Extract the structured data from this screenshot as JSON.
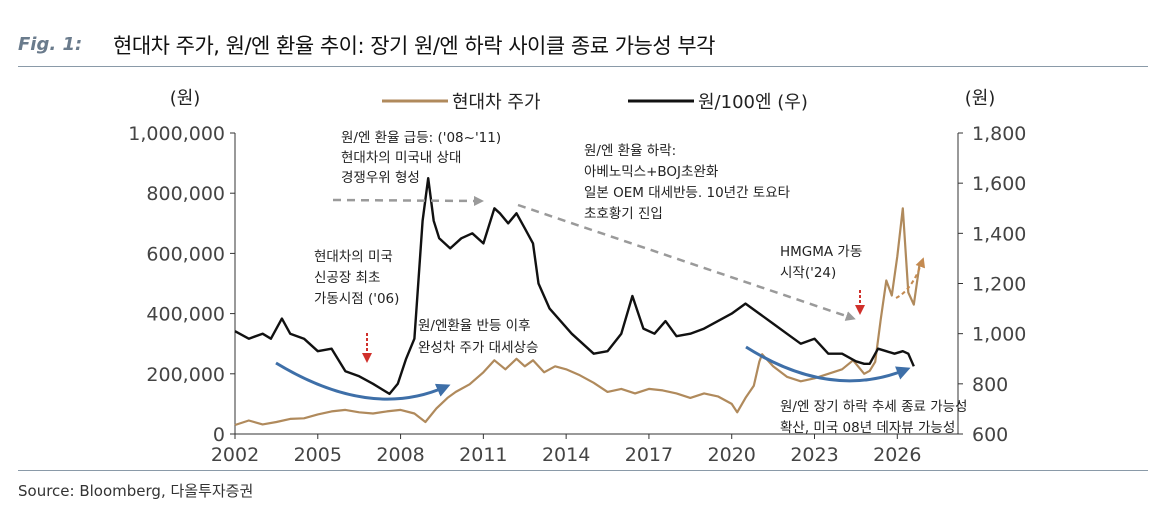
{
  "figure": {
    "label": "Fig. 1:",
    "title": "현대차 주가, 원/엔 환율 추이: 장기 원/엔 하락 사이클 종료 가능성 부각",
    "source": "Source: Bloomberg, 다올투자증권"
  },
  "chart_data": {
    "type": "line",
    "left_unit": "(원)",
    "right_unit": "(원)",
    "x_ticks": [
      "2002",
      "2005",
      "2008",
      "2011",
      "2014",
      "2017",
      "2020",
      "2023",
      "2026"
    ],
    "x_range": [
      2002,
      2028.2
    ],
    "left_axis": {
      "range": [
        0,
        1000000
      ],
      "ticks": [
        "0",
        "200,000",
        "400,000",
        "600,000",
        "800,000",
        "1,000,000"
      ]
    },
    "right_axis": {
      "range": [
        600,
        1800
      ],
      "ticks": [
        "600",
        "800",
        "1,000",
        "1,200",
        "1,400",
        "1,600",
        "1,800"
      ]
    },
    "legend": {
      "placement": "top-center"
    },
    "series": [
      {
        "name": "현대차 주가",
        "axis": "left",
        "color": "#b08a5c",
        "x": [
          2002.0,
          2002.5,
          2003.0,
          2003.5,
          2004.0,
          2004.5,
          2005.0,
          2005.5,
          2006.0,
          2006.5,
          2007.0,
          2007.5,
          2008.0,
          2008.5,
          2008.9,
          2009.3,
          2009.7,
          2010.0,
          2010.5,
          2011.0,
          2011.4,
          2011.8,
          2012.2,
          2012.5,
          2012.8,
          2013.2,
          2013.6,
          2014.0,
          2014.5,
          2015.0,
          2015.5,
          2016.0,
          2016.5,
          2017.0,
          2017.5,
          2018.0,
          2018.5,
          2019.0,
          2019.5,
          2020.0,
          2020.2,
          2020.5,
          2020.8,
          2021.0,
          2021.1,
          2021.5,
          2022.0,
          2022.5,
          2023.0,
          2023.5,
          2024.0,
          2024.4,
          2024.8,
          2025.0,
          2025.2,
          2025.4,
          2025.6,
          2025.8,
          2026.0,
          2026.2,
          2026.4,
          2026.6,
          2026.8
        ],
        "values": [
          30000,
          45000,
          32000,
          40000,
          50000,
          52000,
          65000,
          75000,
          80000,
          72000,
          68000,
          75000,
          80000,
          68000,
          40000,
          85000,
          120000,
          140000,
          165000,
          205000,
          245000,
          215000,
          250000,
          225000,
          245000,
          205000,
          225000,
          215000,
          195000,
          170000,
          140000,
          150000,
          135000,
          150000,
          145000,
          135000,
          120000,
          135000,
          125000,
          100000,
          72000,
          120000,
          160000,
          240000,
          265000,
          225000,
          190000,
          175000,
          185000,
          200000,
          215000,
          245000,
          200000,
          210000,
          240000,
          380000,
          510000,
          460000,
          590000,
          750000,
          470000,
          430000,
          560000
        ]
      },
      {
        "name": "원/100엔 (우)",
        "axis": "right",
        "color": "#111111",
        "x": [
          2002.0,
          2002.5,
          2003.0,
          2003.3,
          2003.7,
          2004.0,
          2004.5,
          2005.0,
          2005.5,
          2006.0,
          2006.5,
          2007.0,
          2007.3,
          2007.6,
          2007.9,
          2008.2,
          2008.5,
          2008.8,
          2009.0,
          2009.2,
          2009.4,
          2009.8,
          2010.2,
          2010.6,
          2011.0,
          2011.4,
          2011.6,
          2011.9,
          2012.2,
          2012.5,
          2012.8,
          2013.0,
          2013.4,
          2013.8,
          2014.2,
          2014.6,
          2015.0,
          2015.5,
          2016.0,
          2016.4,
          2016.8,
          2017.2,
          2017.6,
          2018.0,
          2018.5,
          2019.0,
          2019.5,
          2020.0,
          2020.5,
          2021.0,
          2021.5,
          2022.0,
          2022.5,
          2023.0,
          2023.5,
          2024.0,
          2024.5,
          2024.8,
          2025.0,
          2025.3,
          2025.6,
          2025.9,
          2026.2,
          2026.4,
          2026.6
        ],
        "values": [
          1010,
          980,
          1000,
          980,
          1060,
          1000,
          980,
          930,
          940,
          850,
          830,
          800,
          780,
          760,
          800,
          900,
          980,
          1450,
          1620,
          1450,
          1380,
          1340,
          1380,
          1400,
          1360,
          1500,
          1480,
          1440,
          1480,
          1420,
          1360,
          1200,
          1100,
          1050,
          1000,
          960,
          920,
          930,
          1000,
          1150,
          1020,
          1000,
          1050,
          990,
          1000,
          1020,
          1050,
          1080,
          1120,
          1080,
          1040,
          1000,
          960,
          980,
          920,
          920,
          890,
          880,
          880,
          940,
          930,
          920,
          930,
          920,
          870
        ]
      }
    ],
    "annotations": [
      {
        "lines": [
          "원/엔 환율 급등: ('08~'11)",
          "현대차의 미국내 상대",
          "경쟁우위 형성"
        ]
      },
      {
        "lines": [
          "원/엔 환율 하락:",
          "아베노믹스+BOJ초완화",
          "일본 OEM 대세반등. 10년간 토요타",
          "초호황기 진입"
        ]
      },
      {
        "lines": [
          "현대차의 미국",
          "신공장 최초",
          "가동시점 ('06)"
        ]
      },
      {
        "lines": [
          "원/엔환율 반등 이후",
          "완성차 주가 대세상승"
        ]
      },
      {
        "lines": [
          "HMGMA 가동",
          "시작('24)"
        ]
      },
      {
        "lines": [
          "원/엔 장기 하락 추세 종료 가능성",
          "확산, 미국 08년 데자뷰 가능성"
        ]
      }
    ]
  }
}
